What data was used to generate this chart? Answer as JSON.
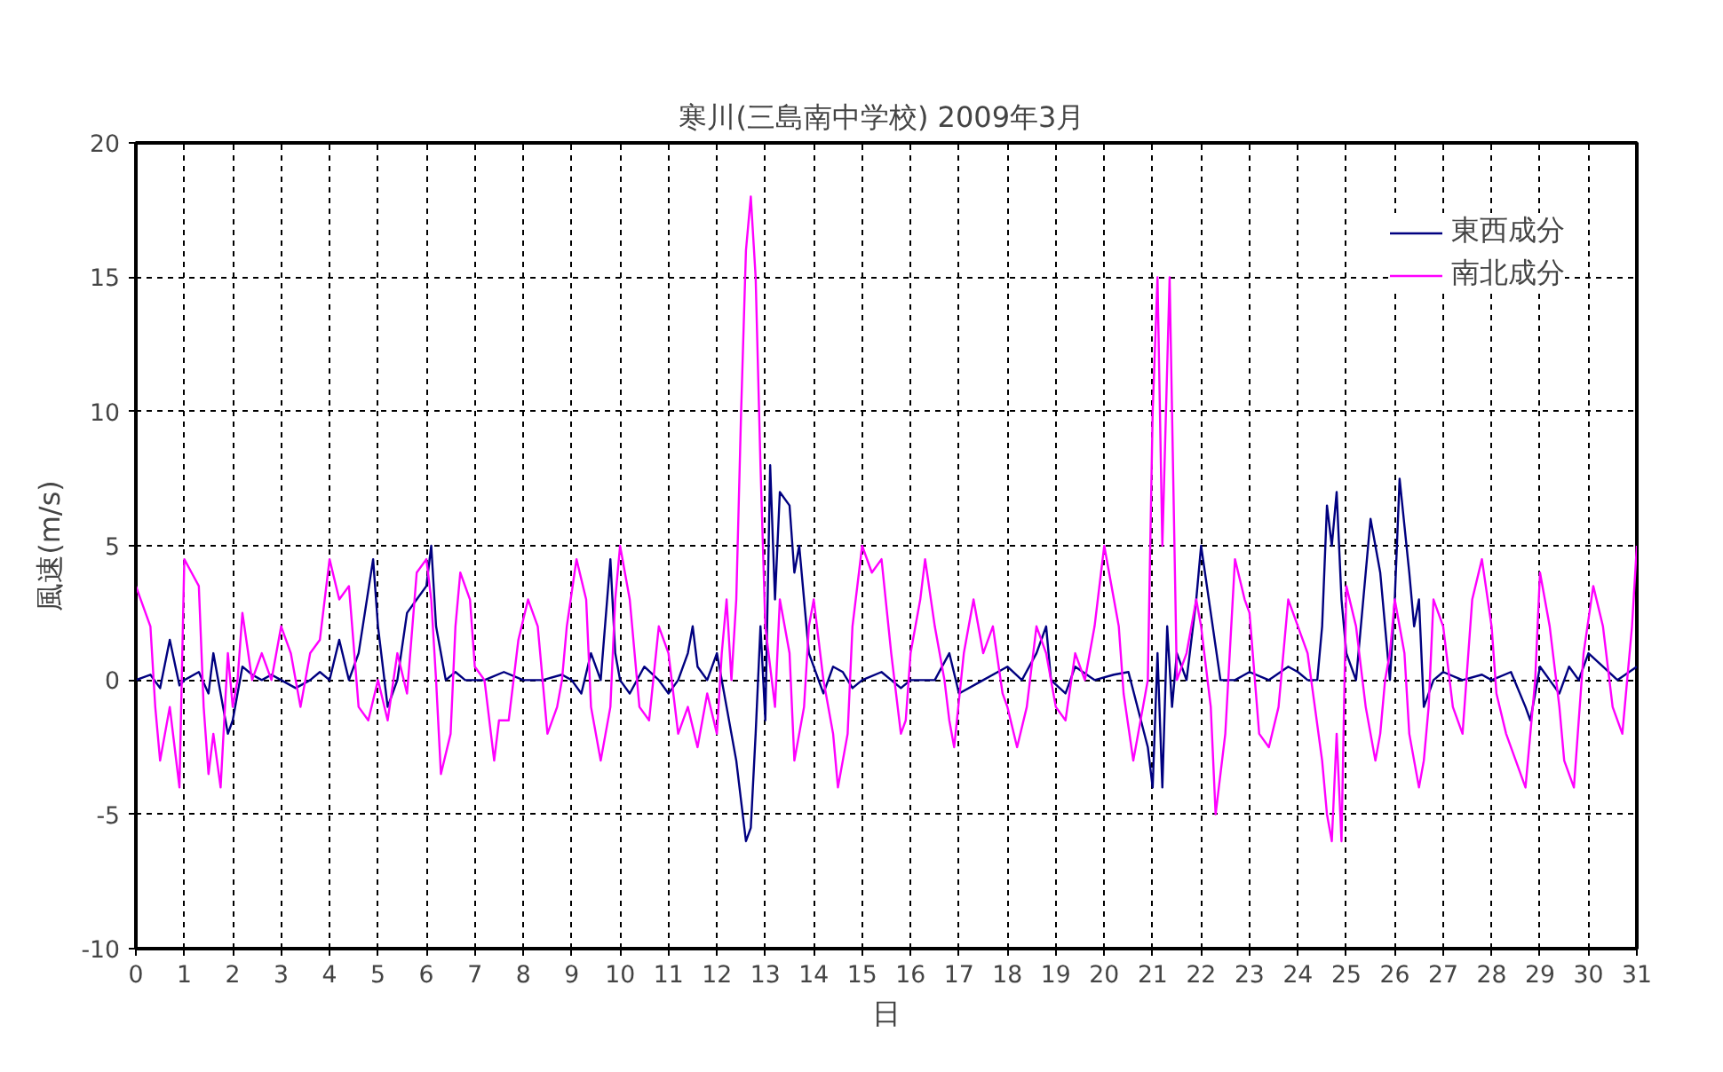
{
  "chart_data": {
    "type": "line",
    "title": "寒川(三島南中学校)  2009年3月",
    "xlabel": "日",
    "ylabel": "風速(m/s)",
    "xlim": [
      0,
      31
    ],
    "xticks": [
      0,
      1,
      2,
      3,
      4,
      5,
      6,
      7,
      8,
      9,
      10,
      11,
      12,
      13,
      14,
      15,
      16,
      17,
      18,
      19,
      20,
      21,
      22,
      23,
      24,
      25,
      26,
      27,
      28,
      29,
      30,
      31
    ],
    "ylim": [
      -10,
      20
    ],
    "yticks": [
      -10,
      -5,
      0,
      5,
      10,
      15,
      20
    ],
    "grid": true,
    "legend": "top right",
    "marker": "none",
    "line_style": "solid",
    "series": [
      {
        "name": "東西成分",
        "color": "#000080",
        "x": [
          0,
          0.3,
          0.5,
          0.7,
          0.9,
          1.0,
          1.3,
          1.5,
          1.6,
          1.8,
          1.9,
          2.0,
          2.2,
          2.4,
          2.6,
          2.8,
          3.0,
          3.3,
          3.6,
          3.8,
          4.0,
          4.2,
          4.4,
          4.6,
          4.9,
          5.0,
          5.2,
          5.4,
          5.6,
          5.8,
          6.0,
          6.1,
          6.2,
          6.4,
          6.6,
          6.8,
          7.2,
          7.6,
          8.0,
          8.4,
          8.8,
          9.0,
          9.2,
          9.4,
          9.6,
          9.8,
          9.9,
          10.0,
          10.2,
          10.5,
          10.8,
          11.0,
          11.2,
          11.4,
          11.5,
          11.6,
          11.8,
          12.0,
          12.2,
          12.4,
          12.5,
          12.6,
          12.7,
          12.8,
          12.9,
          13.0,
          13.1,
          13.2,
          13.3,
          13.5,
          13.6,
          13.7,
          13.8,
          13.9,
          14.0,
          14.2,
          14.4,
          14.6,
          14.8,
          15.0,
          15.4,
          15.8,
          16.0,
          16.5,
          16.8,
          17.0,
          17.5,
          18.0,
          18.3,
          18.6,
          18.8,
          18.9,
          19.2,
          19.4,
          19.8,
          20.2,
          20.5,
          20.9,
          21.0,
          21.1,
          21.2,
          21.3,
          21.4,
          21.5,
          21.7,
          21.9,
          22.0,
          22.2,
          22.4,
          22.7,
          23.0,
          23.4,
          23.8,
          24.0,
          24.2,
          24.4,
          24.5,
          24.6,
          24.7,
          24.8,
          24.9,
          25.0,
          25.2,
          25.4,
          25.5,
          25.7,
          25.9,
          26.0,
          26.1,
          26.3,
          26.4,
          26.5,
          26.6,
          26.8,
          27.0,
          27.4,
          27.8,
          28.0,
          28.4,
          28.7,
          28.8,
          29.0,
          29.2,
          29.4,
          29.6,
          29.8,
          30.0,
          30.3,
          30.6,
          31.0
        ],
        "values": [
          0,
          0.2,
          -0.3,
          1.5,
          -0.2,
          0,
          0.3,
          -0.5,
          1,
          -1,
          -2,
          -1.5,
          0.5,
          0.2,
          0,
          0.2,
          0,
          -0.3,
          0,
          0.3,
          0,
          1.5,
          0,
          1,
          4.5,
          2,
          -1,
          0,
          2.5,
          3,
          3.5,
          5,
          2,
          0,
          0.3,
          0,
          0,
          0.3,
          0,
          0,
          0.2,
          0,
          -0.5,
          1,
          0,
          4.5,
          1,
          0,
          -0.5,
          0.5,
          0,
          -0.5,
          0,
          1,
          2,
          0.5,
          0,
          1,
          -1,
          -3,
          -4.5,
          -6,
          -5.5,
          -2,
          2,
          -1.5,
          8,
          3,
          7,
          6.5,
          4,
          5,
          3,
          1,
          0.5,
          -0.5,
          0.5,
          0.3,
          -0.3,
          0,
          0.3,
          -0.3,
          0,
          0,
          1,
          -0.5,
          0,
          0.5,
          0,
          1,
          2,
          0,
          -0.5,
          0.5,
          0,
          0.2,
          0.3,
          -2.5,
          -4,
          1,
          -4,
          2,
          -1,
          1,
          0,
          3,
          5,
          2.5,
          0,
          0,
          0.3,
          0,
          0.5,
          0.3,
          0,
          0,
          2,
          6.5,
          5,
          7,
          3,
          1,
          0,
          4,
          6,
          4,
          0,
          3,
          7.5,
          4,
          2,
          3,
          -1,
          0,
          0.3,
          0,
          0.2,
          0,
          0.3,
          -1,
          -1.5,
          0.5,
          0,
          -0.5,
          0.5,
          0,
          1,
          0.5,
          0,
          0.5
        ]
      },
      {
        "name": "南北成分",
        "color": "#ff00ff",
        "x": [
          0,
          0.1,
          0.3,
          0.4,
          0.5,
          0.7,
          0.8,
          0.9,
          1.0,
          1.15,
          1.3,
          1.4,
          1.5,
          1.6,
          1.75,
          1.9,
          2.0,
          2.1,
          2.2,
          2.4,
          2.6,
          2.8,
          3.0,
          3.2,
          3.4,
          3.6,
          3.8,
          4.0,
          4.2,
          4.4,
          4.6,
          4.8,
          5.0,
          5.2,
          5.4,
          5.6,
          5.8,
          6.0,
          6.1,
          6.2,
          6.3,
          6.5,
          6.6,
          6.7,
          6.9,
          7.0,
          7.2,
          7.4,
          7.5,
          7.7,
          7.9,
          8.1,
          8.3,
          8.5,
          8.7,
          8.8,
          8.9,
          9.1,
          9.3,
          9.4,
          9.6,
          9.8,
          9.9,
          10.0,
          10.2,
          10.4,
          10.6,
          10.8,
          11.0,
          11.2,
          11.4,
          11.6,
          11.8,
          12.0,
          12.1,
          12.2,
          12.3,
          12.4,
          12.5,
          12.6,
          12.7,
          12.8,
          12.9,
          13.0,
          13.2,
          13.3,
          13.5,
          13.6,
          13.8,
          13.9,
          14.0,
          14.2,
          14.4,
          14.5,
          14.7,
          14.8,
          15.0,
          15.2,
          15.4,
          15.6,
          15.8,
          15.9,
          16.0,
          16.2,
          16.3,
          16.5,
          16.7,
          16.8,
          16.9,
          17.1,
          17.3,
          17.5,
          17.7,
          17.9,
          18.0,
          18.2,
          18.4,
          18.6,
          18.8,
          19.0,
          19.2,
          19.4,
          19.6,
          19.8,
          20.0,
          20.2,
          20.3,
          20.4,
          20.6,
          20.8,
          20.9,
          21.0,
          21.1,
          21.2,
          21.35,
          21.5,
          21.7,
          21.9,
          22.0,
          22.2,
          22.3,
          22.5,
          22.7,
          22.9,
          23.0,
          23.2,
          23.4,
          23.6,
          23.8,
          24.0,
          24.2,
          24.5,
          24.6,
          24.7,
          24.8,
          24.9,
          25.0,
          25.2,
          25.4,
          25.6,
          25.7,
          25.8,
          25.9,
          26.0,
          26.2,
          26.3,
          26.5,
          26.6,
          26.7,
          26.8,
          27.0,
          27.2,
          27.4,
          27.6,
          27.8,
          28.0,
          28.1,
          28.3,
          28.5,
          28.7,
          28.9,
          29.0,
          29.2,
          29.4,
          29.5,
          29.7,
          29.9,
          30.1,
          30.3,
          30.5,
          30.7,
          30.9,
          31.0
        ],
        "values": [
          3.5,
          3,
          2,
          -1,
          -3,
          -1,
          -2.5,
          -4,
          4.5,
          4,
          3.5,
          -1,
          -3.5,
          -2,
          -4,
          1,
          -1,
          0,
          2.5,
          0,
          1,
          0,
          2,
          1,
          -1,
          1,
          1.5,
          4.5,
          3,
          3.5,
          -1,
          -1.5,
          0,
          -1.5,
          1,
          -0.5,
          4,
          4.5,
          3,
          0,
          -3.5,
          -2,
          2,
          4,
          3,
          0.5,
          0,
          -3,
          -1.5,
          -1.5,
          1.5,
          3,
          2,
          -2,
          -1,
          0,
          2,
          4.5,
          3,
          -1,
          -3,
          -1,
          3,
          5,
          3,
          -1,
          -1.5,
          2,
          1,
          -2,
          -1,
          -2.5,
          -0.5,
          -2,
          1,
          3,
          0,
          3,
          10,
          16,
          18,
          15,
          8,
          2,
          -1,
          3,
          1,
          -3,
          -1,
          2,
          3,
          0,
          -2,
          -4,
          -2,
          2,
          5,
          4,
          4.5,
          1,
          -2,
          -1.5,
          1,
          3,
          4.5,
          2,
          0,
          -1.5,
          -2.5,
          1,
          3,
          1,
          2,
          -0.5,
          -1,
          -2.5,
          -1,
          2,
          1,
          -1,
          -1.5,
          1,
          0,
          2,
          5,
          3,
          2,
          -0.5,
          -3,
          -1,
          0,
          10,
          15,
          5,
          15,
          0,
          1,
          3,
          2,
          -1,
          -5,
          -2,
          4.5,
          3,
          2.5,
          -2,
          -2.5,
          -1,
          3,
          2,
          1,
          -3,
          -5,
          -6,
          -2,
          -6,
          3.5,
          2,
          -1,
          -3,
          -2,
          0,
          1,
          3,
          1,
          -2,
          -4,
          -3,
          -1,
          3,
          2,
          -1,
          -2,
          3,
          4.5,
          2,
          -0.5,
          -2,
          -3,
          -4,
          0,
          4,
          2,
          -1,
          -3,
          -4,
          1,
          3.5,
          2,
          -1,
          -2,
          2,
          5
        ]
      }
    ]
  }
}
